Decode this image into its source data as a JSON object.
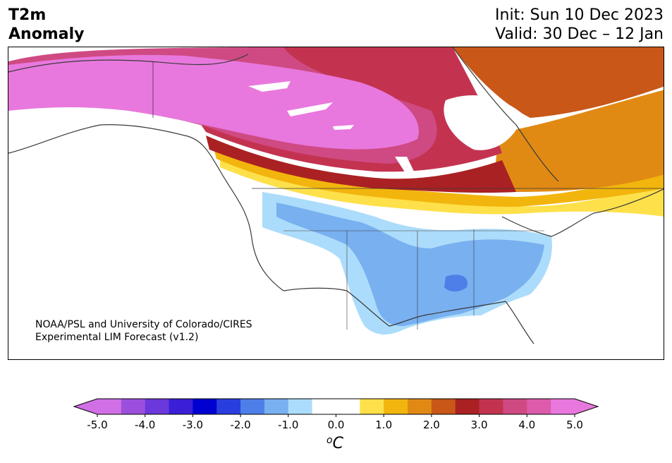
{
  "title": {
    "left_line1": "T2m",
    "left_line2": "Anomaly",
    "init": "Init: Sun 10 Dec 2023",
    "valid": "Valid: 30 Dec – 12 Jan"
  },
  "credit": {
    "line1": "NOAA/PSL and University of Colorado/CIRES",
    "line2": "Experimental LIM Forecast (v1.2)"
  },
  "colorbar": {
    "ticks": [
      "-5.0",
      "-4.0",
      "-3.0",
      "-2.0",
      "-1.0",
      "0.0",
      "1.0",
      "2.0",
      "3.0",
      "4.0",
      "5.0"
    ],
    "unit": "oC",
    "colors": [
      "#d16fe6",
      "#9b4fdc",
      "#6b38dc",
      "#3a1fd6",
      "#0000d0",
      "#2a3ee0",
      "#4e7fe8",
      "#78b0f0",
      "#acdcfb",
      "#ffffff",
      "#ffffff",
      "#fee04a",
      "#f2b50d",
      "#e08a14",
      "#c85718",
      "#aa2123",
      "#c33350",
      "#cf4a82",
      "#dc5cab",
      "#e878de"
    ]
  },
  "map": {
    "region": "North America",
    "warm_anomaly": "Canada",
    "cold_anomaly": "Central and Southeastern United States"
  }
}
